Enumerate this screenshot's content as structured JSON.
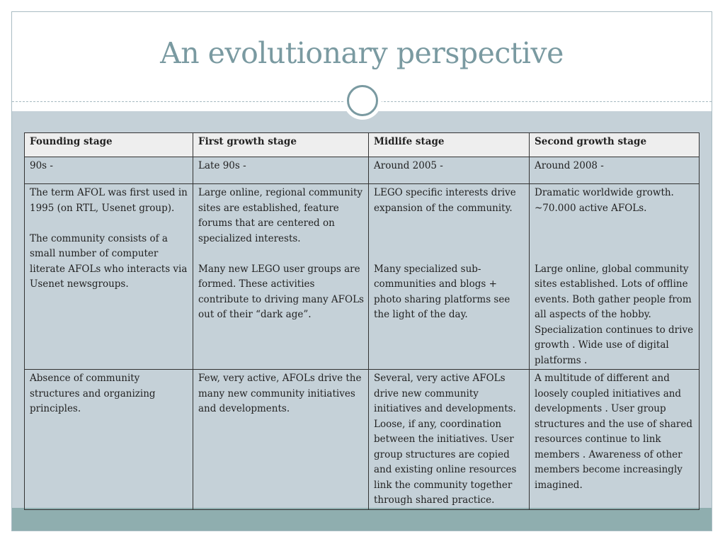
{
  "slide": {
    "title": "An evolutionary perspective"
  },
  "table": {
    "headers": [
      "Founding stage",
      "First growth stage",
      "Midlife stage",
      "Second growth stage"
    ],
    "periods": [
      "90s -",
      "Late 90s -",
      "Around 2005 -",
      "Around 2008 -"
    ],
    "descriptions": [
      {
        "part1": "The term AFOL was first used in 1995 (on RTL, Usenet group).",
        "part2": " The community consists of a small number of computer literate AFOLs who interacts via Usenet newsgroups."
      },
      {
        "part1": "Large online, regional community sites are established, feature forums that are centered on specialized interests.",
        "part2": "Many new LEGO user groups are formed. These activities contribute to driving many AFOLs out of their “dark age”."
      },
      {
        "part1": "LEGO specific interests drive expansion of the community.",
        "part2": "Many specialized sub-communities and blogs + photo sharing platforms see the light of the day."
      },
      {
        "part1": "Dramatic worldwide growth. ~70.000 active AFOLs.",
        "part2": "Large online, global community sites established. Lots of offline events. Both gather people from all aspects of the hobby. Specialization continues to drive growth . Wide use of digital platforms ."
      }
    ],
    "governance": [
      "Absence of community structures and organizing principles.",
      "Few, very active, AFOLs drive the many new community initiatives and developments.",
      "Several, very active AFOLs drive new community initiatives and developments. Loose, if any, coordination between the initiatives. User group structures are copied and existing online resources link the community together through shared practice.",
      "A multitude of different and loosely coupled initiatives and developments . User group structures and the use of shared resources continue to link members . Awareness of other members become increasingly imagined."
    ]
  },
  "colors": {
    "title": "#7a9aa1",
    "body_background": "#c5d1d8",
    "footer_band": "#8faeaf",
    "header_row": "#eeeeee"
  }
}
